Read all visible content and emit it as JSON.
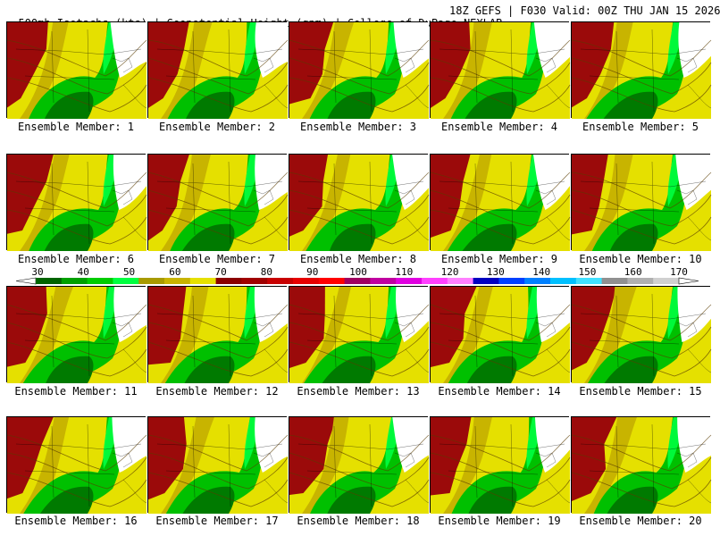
{
  "header": {
    "left": "500mb Isotachs (kts) | Geopotential Height (gpm) | College of DuPage NEXLAB",
    "right": "18Z GEFS | F030 Valid: 00Z THU JAN 15 2026"
  },
  "members": [
    "Ensemble Member: 1",
    "Ensemble Member: 2",
    "Ensemble Member: 3",
    "Ensemble Member: 4",
    "Ensemble Member: 5",
    "Ensemble Member: 6",
    "Ensemble Member: 7",
    "Ensemble Member: 8",
    "Ensemble Member: 9",
    "Ensemble Member: 10",
    "Ensemble Member: 11",
    "Ensemble Member: 12",
    "Ensemble Member: 13",
    "Ensemble Member: 14",
    "Ensemble Member: 15",
    "Ensemble Member: 16",
    "Ensemble Member: 17",
    "Ensemble Member: 18",
    "Ensemble Member: 19",
    "Ensemble Member: 20"
  ],
  "color_scale": {
    "ticks": [
      "30",
      "40",
      "50",
      "60",
      "70",
      "80",
      "90",
      "100",
      "110",
      "120",
      "130",
      "140",
      "150",
      "160",
      "170"
    ],
    "colors": [
      "#006400",
      "#00a000",
      "#00cc00",
      "#00ff40",
      "#a89a00",
      "#c8b400",
      "#e6e000",
      "#8b0000",
      "#a00000",
      "#c80000",
      "#e60000",
      "#ff0000",
      "#a00060",
      "#c000a0",
      "#e000e0",
      "#ff40ff",
      "#ff80ff",
      "#0000c0",
      "#0040ff",
      "#0080ff",
      "#00c0ff",
      "#40e0ff",
      "#909090",
      "#b0b0b0",
      "#d0d0d0"
    ]
  }
}
